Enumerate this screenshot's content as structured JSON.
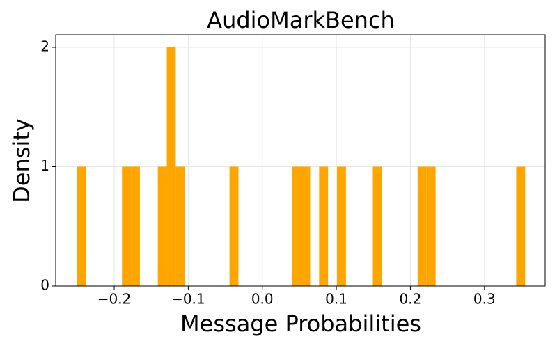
{
  "chart_data": {
    "type": "histogram",
    "title": "AudioMarkBench",
    "xlabel": "Message Probabilities",
    "ylabel": "Density",
    "color": "#ffa500",
    "grid": true,
    "bins": [
      -0.25,
      -0.2379,
      -0.2258,
      -0.2137,
      -0.2016,
      -0.1895,
      -0.1774,
      -0.1653,
      -0.1532,
      -0.1411,
      -0.129,
      -0.1169,
      -0.1048,
      -0.0927,
      -0.0806,
      -0.0685,
      -0.0564,
      -0.0443,
      -0.0322,
      -0.0201,
      -0.008,
      0.0041,
      0.0162,
      0.0283,
      0.0404,
      0.0525,
      0.0646,
      0.0767,
      0.0888,
      0.1009,
      0.113,
      0.1251,
      0.1372,
      0.1493,
      0.1614,
      0.1735,
      0.1856,
      0.1977,
      0.2098,
      0.2219,
      0.234,
      0.2461,
      0.2582,
      0.2703,
      0.2824,
      0.2945,
      0.3066,
      0.3187,
      0.3308,
      0.3429,
      0.355
    ],
    "values": [
      1,
      0,
      0,
      0,
      0,
      1,
      1,
      0,
      0,
      1,
      2,
      1,
      0,
      0,
      0,
      0,
      0,
      1,
      0,
      0,
      0,
      0,
      0,
      0,
      1,
      1,
      0,
      1,
      0,
      1,
      0,
      0,
      0,
      1,
      0,
      0,
      0,
      0,
      1,
      1,
      0,
      0,
      0,
      0,
      0,
      0,
      0,
      0,
      0,
      1
    ],
    "xlim": [
      -0.279,
      0.382
    ],
    "xticks": [
      {
        "value": -0.2,
        "label": "−0.2"
      },
      {
        "value": -0.1,
        "label": "−0.1"
      },
      {
        "value": 0,
        "label": "0.0"
      },
      0.1,
      0.2,
      0.3
    ],
    "ylim": [
      0,
      2.105
    ],
    "yticks": [
      0,
      1,
      2
    ]
  }
}
